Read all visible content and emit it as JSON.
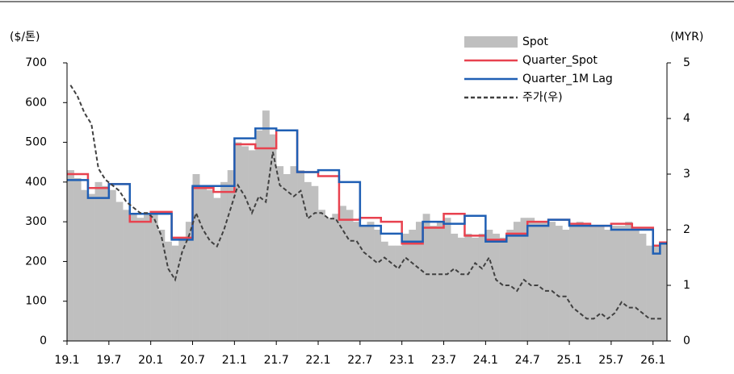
{
  "chart_data": {
    "type": "combo",
    "y_label": "($/톤)",
    "y2_label": "(MYR)",
    "categories": [
      "19.1",
      null,
      null,
      null,
      null,
      null,
      "19.7",
      null,
      null,
      null,
      null,
      null,
      "20.1",
      null,
      null,
      null,
      null,
      null,
      "20.7",
      null,
      null,
      null,
      null,
      null,
      "21.1",
      null,
      null,
      null,
      null,
      null,
      "21.7",
      null,
      null,
      null,
      null,
      null,
      "22.1",
      null,
      null,
      null,
      null,
      null,
      "22.7",
      null,
      null,
      null,
      null,
      null,
      "23.1",
      null,
      null,
      null,
      null,
      null,
      "23.7",
      null,
      null,
      null,
      null,
      null,
      "24.1",
      null,
      null,
      null,
      null,
      null,
      "24.7",
      null,
      null,
      null,
      null,
      null,
      "25.1",
      null,
      null,
      null,
      null,
      null,
      "25.7",
      null,
      null,
      null,
      null,
      null,
      "26.1",
      null
    ],
    "series": [
      {
        "name": "Spot",
        "type": "bar",
        "color": "#bfbfbf",
        "values": [
          430,
          410,
          380,
          370,
          400,
          390,
          380,
          350,
          330,
          320,
          310,
          320,
          320,
          280,
          250,
          240,
          260,
          300,
          420,
          390,
          380,
          360,
          400,
          430,
          500,
          490,
          480,
          530,
          580,
          520,
          440,
          420,
          440,
          430,
          400,
          390,
          330,
          310,
          320,
          340,
          330,
          300,
          290,
          300,
          280,
          250,
          240,
          240,
          270,
          280,
          300,
          320,
          290,
          300,
          310,
          270,
          260,
          270,
          260,
          270,
          280,
          270,
          260,
          280,
          300,
          310,
          310,
          300,
          300,
          300,
          290,
          280,
          290,
          300,
          290,
          290,
          290,
          280,
          290,
          290,
          300,
          280,
          270,
          240,
          240,
          250
        ]
      },
      {
        "name": "Quarter_Spot",
        "type": "step",
        "color": "#e8424f",
        "values": [
          420,
          420,
          420,
          385,
          385,
          385,
          395,
          395,
          395,
          300,
          300,
          300,
          325,
          325,
          325,
          260,
          260,
          260,
          385,
          385,
          385,
          375,
          375,
          375,
          495,
          495,
          495,
          485,
          485,
          485,
          530,
          530,
          530,
          425,
          425,
          425,
          415,
          415,
          415,
          305,
          305,
          305,
          310,
          310,
          310,
          300,
          300,
          300,
          245,
          245,
          245,
          285,
          285,
          285,
          320,
          320,
          320,
          265,
          265,
          265,
          255,
          255,
          255,
          270,
          270,
          270,
          300,
          300,
          300,
          305,
          305,
          305,
          295,
          295,
          295,
          290,
          290,
          290,
          295,
          295,
          295,
          285,
          285,
          285,
          240,
          248
        ]
      },
      {
        "name": "Quarter_1M Lag",
        "type": "step",
        "color": "#1f5fb4",
        "values": [
          405,
          405,
          405,
          360,
          360,
          360,
          395,
          395,
          395,
          320,
          320,
          320,
          320,
          320,
          320,
          255,
          255,
          255,
          390,
          390,
          390,
          390,
          390,
          390,
          510,
          510,
          510,
          535,
          535,
          535,
          530,
          530,
          530,
          425,
          425,
          425,
          430,
          430,
          430,
          400,
          400,
          400,
          290,
          290,
          290,
          270,
          270,
          270,
          250,
          250,
          250,
          300,
          300,
          300,
          295,
          295,
          295,
          315,
          315,
          315,
          250,
          250,
          250,
          265,
          265,
          265,
          290,
          290,
          290,
          305,
          305,
          305,
          290,
          290,
          290,
          290,
          290,
          290,
          280,
          280,
          280,
          280,
          280,
          280,
          220,
          245
        ]
      },
      {
        "name": "주가(우)",
        "type": "line",
        "axis": "y2",
        "color": "#404040",
        "dashed": true,
        "values": [
          4.6,
          4.4,
          4.1,
          3.9,
          3.1,
          2.9,
          2.8,
          2.7,
          2.5,
          2.4,
          2.3,
          2.3,
          2.2,
          1.9,
          1.3,
          1.1,
          1.6,
          1.9,
          2.3,
          2.0,
          1.8,
          1.7,
          2.0,
          2.4,
          2.8,
          2.6,
          2.3,
          2.6,
          2.5,
          3.4,
          2.8,
          2.7,
          2.6,
          2.7,
          2.2,
          2.3,
          2.3,
          2.2,
          2.2,
          2.0,
          1.8,
          1.8,
          1.6,
          1.5,
          1.4,
          1.5,
          1.4,
          1.3,
          1.5,
          1.4,
          1.3,
          1.2,
          1.2,
          1.2,
          1.2,
          1.3,
          1.2,
          1.2,
          1.4,
          1.3,
          1.5,
          1.1,
          1.0,
          1.0,
          0.9,
          1.1,
          1.0,
          1.0,
          0.9,
          0.9,
          0.8,
          0.8,
          0.6,
          0.5,
          0.4,
          0.4,
          0.5,
          0.4,
          0.5,
          0.7,
          0.6,
          0.6,
          0.5,
          0.4,
          0.4,
          0.4
        ]
      }
    ],
    "ylim": [
      0,
      700
    ],
    "yticks": [
      0,
      100,
      200,
      300,
      400,
      500,
      600,
      700
    ],
    "y2lim": [
      0,
      5
    ],
    "y2ticks": [
      0,
      1,
      2,
      3,
      4,
      5
    ],
    "legend": "top-right"
  }
}
